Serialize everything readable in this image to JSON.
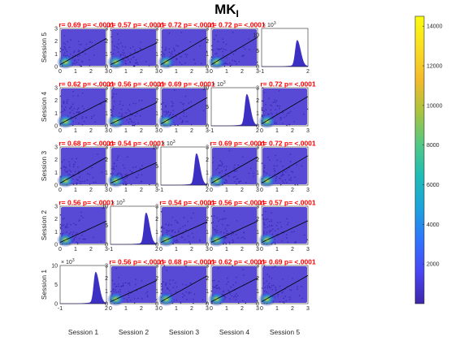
{
  "figure": {
    "title_main": "MK",
    "title_sub": "I"
  },
  "chart_data": {
    "type": "scatter",
    "layout": "5x5 scatterplot matrix",
    "title": "MKI",
    "sessions": [
      "Session 1",
      "Session 2",
      "Session 3",
      "Session 4",
      "Session 5"
    ],
    "row_labels_top_to_bottom": [
      "Session 5",
      "Session 4",
      "Session 3",
      "Session 2",
      "Session 1"
    ],
    "col_labels": [
      "Session 1",
      "Session 2",
      "Session 3",
      "Session 4",
      "Session 5"
    ],
    "scatter_xlim": [
      0,
      3
    ],
    "scatter_ylim": [
      0,
      3
    ],
    "scatter_xticks": [
      "0",
      "1",
      "2",
      "3"
    ],
    "scatter_yticks": [
      "0",
      "1",
      "2",
      "3"
    ],
    "scatter_color_scale": "density (parula)",
    "fit_line_color": "#000000",
    "hist_xlim": [
      -1,
      2
    ],
    "hist_ylim": [
      0,
      10
    ],
    "hist_xticks": [
      "-1",
      "0",
      "1",
      "2"
    ],
    "hist_yticks": [
      "0",
      "5",
      "10"
    ],
    "hist_exponent_base": "× 10",
    "hist_exponent_power": "3",
    "hist_peak": 1.3,
    "annotation_color": "#ff0000",
    "cells": [
      [
        {
          "type": "scatter",
          "label": "r= 0.69 p= <.0001",
          "r": 0.69
        },
        {
          "type": "scatter",
          "label": "r= 0.57 p= <.0001",
          "r": 0.57
        },
        {
          "type": "scatter",
          "label": "r= 0.72 p= <.0001",
          "r": 0.72
        },
        {
          "type": "scatter",
          "label": "r= 0.72 p= <.0001",
          "r": 0.72
        },
        {
          "type": "hist",
          "ymax": 12
        }
      ],
      [
        {
          "type": "scatter",
          "label": "r= 0.62 p= <.0001",
          "r": 0.62
        },
        {
          "type": "scatter",
          "label": "r= 0.56 p= <.0001",
          "r": 0.56
        },
        {
          "type": "scatter",
          "label": "r= 0.69 p= <.0001",
          "r": 0.69
        },
        {
          "type": "hist",
          "ymax": 10
        },
        {
          "type": "scatter",
          "label": "r= 0.72 p= <.0001",
          "r": 0.72
        }
      ],
      [
        {
          "type": "scatter",
          "label": "r= 0.68 p= <.0001",
          "r": 0.68
        },
        {
          "type": "scatter",
          "label": "r= 0.54 p= <.0001",
          "r": 0.54
        },
        {
          "type": "hist",
          "ymax": 10
        },
        {
          "type": "scatter",
          "label": "r= 0.69 p= <.0001",
          "r": 0.69
        },
        {
          "type": "scatter",
          "label": "r= 0.72 p= <.0001",
          "r": 0.72
        }
      ],
      [
        {
          "type": "scatter",
          "label": "r= 0.56 p= <.0001",
          "r": 0.56
        },
        {
          "type": "hist",
          "ymax": 10
        },
        {
          "type": "scatter",
          "label": "r= 0.54 p= <.0001",
          "r": 0.54
        },
        {
          "type": "scatter",
          "label": "r= 0.56 p= <.0001",
          "r": 0.56
        },
        {
          "type": "scatter",
          "label": "r= 0.57 p= <.0001",
          "r": 0.57
        }
      ],
      [
        {
          "type": "hist",
          "ymax": 10
        },
        {
          "type": "scatter",
          "label": "r= 0.56 p= <.0001",
          "r": 0.56
        },
        {
          "type": "scatter",
          "label": "r= 0.68 p= <.0001",
          "r": 0.68
        },
        {
          "type": "scatter",
          "label": "r= 0.62 p= <.0001",
          "r": 0.62
        },
        {
          "type": "scatter",
          "label": "r= 0.69 p= <.0001",
          "r": 0.69
        }
      ]
    ],
    "colorbar": {
      "min": 0,
      "max": 14500,
      "ticks": [
        2000,
        4000,
        6000,
        8000,
        10000,
        12000,
        14000
      ],
      "tick_labels": [
        "2000",
        "4000",
        "6000",
        "8000",
        "10000",
        "12000",
        "14000"
      ],
      "colormap": "parula"
    }
  }
}
